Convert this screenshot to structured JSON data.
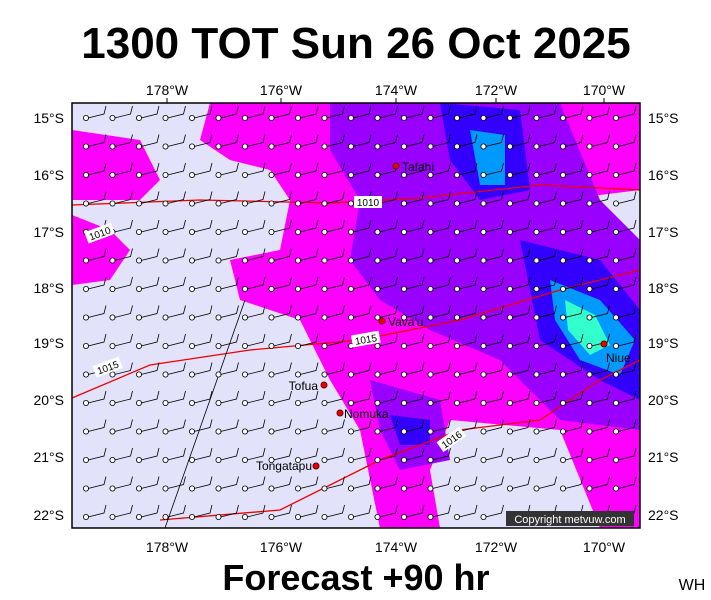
{
  "title": "1300 TOT Sun 26 Oct 2025",
  "footer": "Forecast +90 hr",
  "corner": "WH",
  "map": {
    "lon_labels": [
      "178°W",
      "176°W",
      "174°W",
      "172°W",
      "170°W"
    ],
    "lat_labels": [
      "15°S",
      "16°S",
      "17°S",
      "18°S",
      "19°S",
      "20°S",
      "21°S",
      "22°S"
    ],
    "places": [
      "Tafahi",
      "Vava'u",
      "Niue",
      "Tofua",
      "Nomuka",
      "Tongatapu"
    ],
    "isobar_labels": [
      "1010",
      "1010",
      "1015",
      "1015",
      "1016"
    ],
    "copyright": "Copyright metvuw.com"
  }
}
